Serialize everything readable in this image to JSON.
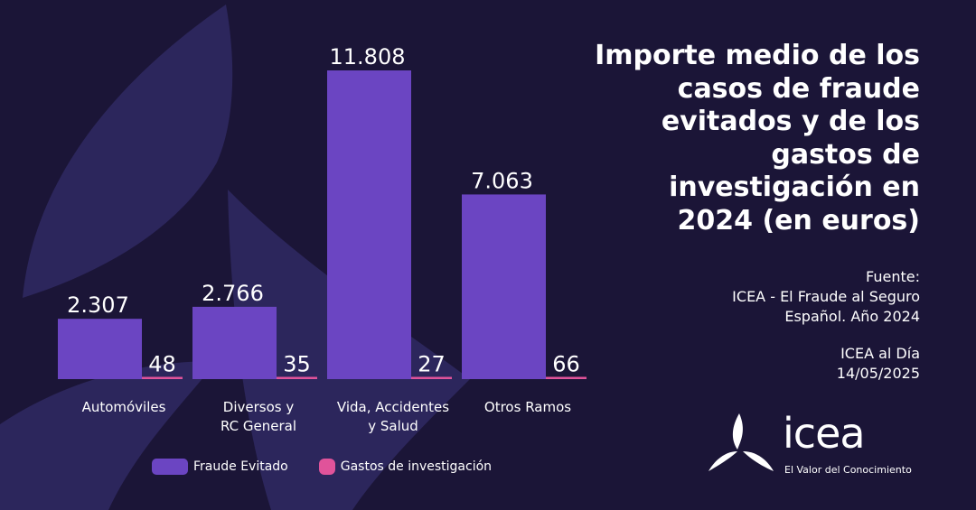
{
  "colors": {
    "background": "#1b1537",
    "fraude": "#6b45c2",
    "gastos": "#e0539a",
    "shape": "#2f2860"
  },
  "title": "Importe medio de los\ncasos de fraude\nevitados y de los\ngastos de\ninvestigación en\n2024 (en euros)",
  "source": {
    "label": "Fuente:",
    "line1": "ICEA - El Fraude al Seguro",
    "line2": "Español. Año 2024"
  },
  "publication": {
    "name": "ICEA al Día",
    "date": "14/05/2025"
  },
  "logo": {
    "word": "icea",
    "tagline": "El Valor del Conocimiento"
  },
  "chart_data": {
    "type": "bar",
    "categories": [
      [
        "Automóviles"
      ],
      [
        "Diversos y",
        "RC General"
      ],
      [
        "Vida, Accidentes",
        "y Salud"
      ],
      [
        "Otros Ramos"
      ]
    ],
    "series": [
      {
        "name": "Fraude Evitado",
        "values": [
          2307,
          2766,
          11808,
          7063
        ],
        "labels": [
          "2.307",
          "2.766",
          "11.808",
          "7.063"
        ]
      },
      {
        "name": "Gastos de investigación",
        "values": [
          48,
          35,
          27,
          66
        ],
        "labels": [
          "48",
          "35",
          "27",
          "66"
        ]
      }
    ],
    "ylim": [
      0,
      11808
    ],
    "title": "Importe medio de los casos de fraude evitados y de los gastos de investigación en 2024 (en euros)",
    "legend": "bottom-left",
    "grid": false
  }
}
